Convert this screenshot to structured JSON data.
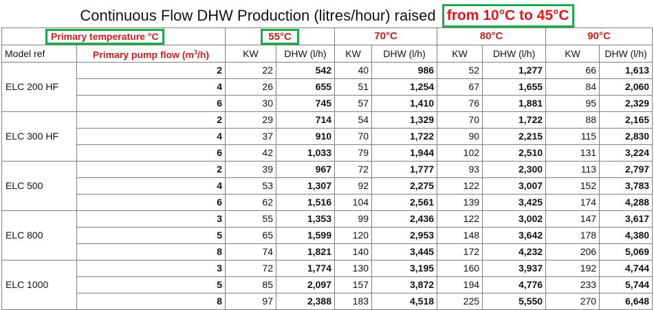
{
  "title": {
    "text": "Continuous Flow DHW Production (litres/hour) raised",
    "highlight": "from 10°C to 45°C"
  },
  "header": {
    "primary_temperature_label": "Primary temperature °C",
    "temperatures": [
      "55°C",
      "70°C",
      "80°C",
      "90°C"
    ],
    "model_ref_label": "Model ref",
    "pump_flow_label_pre": "Primary pump flow (m",
    "pump_flow_label_sup": "3",
    "pump_flow_label_post": "/h)",
    "kw_label": "KW",
    "dhw_label": "DHW (l/h)"
  },
  "models": [
    {
      "name": "ELC 200 HF",
      "rows": [
        {
          "flow": "2",
          "vals": [
            "22",
            "542",
            "40",
            "986",
            "52",
            "1,277",
            "66",
            "1,613"
          ]
        },
        {
          "flow": "4",
          "vals": [
            "26",
            "655",
            "51",
            "1,254",
            "67",
            "1,655",
            "84",
            "2,060"
          ]
        },
        {
          "flow": "6",
          "vals": [
            "30",
            "745",
            "57",
            "1,410",
            "76",
            "1,881",
            "95",
            "2,329"
          ]
        }
      ]
    },
    {
      "name": "ELC 300 HF",
      "rows": [
        {
          "flow": "2",
          "vals": [
            "29",
            "714",
            "54",
            "1,329",
            "70",
            "1,722",
            "88",
            "2,165"
          ]
        },
        {
          "flow": "4",
          "vals": [
            "37",
            "910",
            "70",
            "1,722",
            "90",
            "2,215",
            "115",
            "2,830"
          ]
        },
        {
          "flow": "6",
          "vals": [
            "42",
            "1,033",
            "79",
            "1,944",
            "102",
            "2,510",
            "131",
            "3,224"
          ]
        }
      ]
    },
    {
      "name": "ELC 500",
      "rows": [
        {
          "flow": "2",
          "vals": [
            "39",
            "967",
            "72",
            "1,777",
            "93",
            "2,300",
            "113",
            "2,797"
          ]
        },
        {
          "flow": "4",
          "vals": [
            "53",
            "1,307",
            "92",
            "2,275",
            "122",
            "3,007",
            "152",
            "3,783"
          ]
        },
        {
          "flow": "6",
          "vals": [
            "62",
            "1,516",
            "104",
            "2,561",
            "139",
            "3,425",
            "174",
            "4,288"
          ]
        }
      ]
    },
    {
      "name": "ELC  800",
      "rows": [
        {
          "flow": "3",
          "vals": [
            "55",
            "1,353",
            "99",
            "2,436",
            "122",
            "3,002",
            "147",
            "3,617"
          ]
        },
        {
          "flow": "5",
          "vals": [
            "65",
            "1,599",
            "120",
            "2,953",
            "148",
            "3,642",
            "178",
            "4,380"
          ]
        },
        {
          "flow": "8",
          "vals": [
            "74",
            "1,821",
            "140",
            "3,445",
            "172",
            "4,232",
            "206",
            "5,069"
          ]
        }
      ]
    },
    {
      "name": "ELC 1000",
      "rows": [
        {
          "flow": "3",
          "vals": [
            "72",
            "1,774",
            "130",
            "3,195",
            "160",
            "3,937",
            "192",
            "4,744"
          ]
        },
        {
          "flow": "5",
          "vals": [
            "85",
            "2,097",
            "157",
            "3,872",
            "194",
            "4,776",
            "233",
            "5,744"
          ]
        },
        {
          "flow": "8",
          "vals": [
            "97",
            "2,388",
            "183",
            "4,518",
            "225",
            "5,550",
            "270",
            "6,648"
          ]
        }
      ]
    }
  ]
}
